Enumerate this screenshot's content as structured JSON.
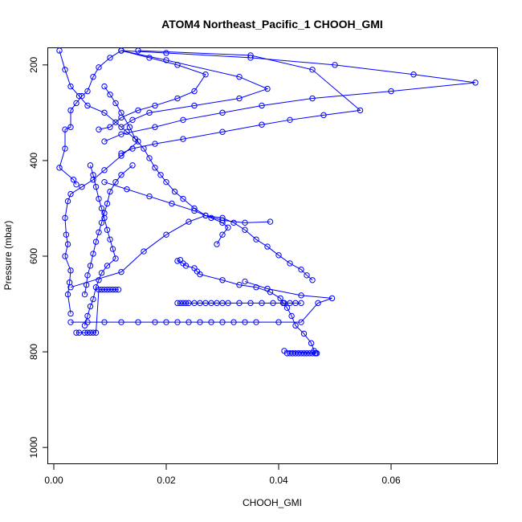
{
  "chart_data": {
    "type": "line",
    "title": "ATOM4 Northeast_Pacific_1 CHOOH_GMI",
    "xlabel": "CHOOH_GMI",
    "ylabel": "Pressure (mbar)",
    "xlim": [
      -0.001,
      0.079
    ],
    "ylim": [
      1035,
      165
    ],
    "y_reversed": true,
    "x_ticks": [
      0.0,
      0.02,
      0.04,
      0.06
    ],
    "x_tick_labels": [
      "0.00",
      "0.02",
      "0.04",
      "0.06"
    ],
    "y_ticks": [
      200,
      400,
      600,
      800,
      1000
    ],
    "y_tick_labels": [
      "200",
      "400",
      "600",
      "800",
      "1000"
    ],
    "grid": false,
    "marker": "open-circle",
    "color": "#0000ff",
    "series": [
      {
        "x": [
          0.0466,
          0.0463,
          0.0458,
          0.0445,
          0.043,
          0.0423,
          0.0415,
          0.0408,
          0.0403,
          0.0385,
          0.036,
          0.033,
          0.03,
          0.026,
          0.0255,
          0.025,
          0.0235,
          0.023,
          0.022,
          0.0225
        ],
        "y": [
          803,
          798,
          782,
          762,
          745,
          725,
          708,
          698,
          688,
          675,
          665,
          660,
          650,
          638,
          632,
          625,
          620,
          615,
          610,
          608
        ]
      },
      {
        "x": [
          0.0415,
          0.042,
          0.0425,
          0.043,
          0.0435,
          0.044,
          0.0445,
          0.045,
          0.0455,
          0.046,
          0.0465,
          0.0468,
          0.041
        ],
        "y": [
          803,
          803,
          803,
          803,
          803,
          803,
          803,
          803,
          803,
          803,
          803,
          803,
          798
        ]
      },
      {
        "x": [
          0.0225,
          0.022,
          0.023,
          0.0235,
          0.024,
          0.025,
          0.026,
          0.027,
          0.028,
          0.029,
          0.03,
          0.031,
          0.033,
          0.035,
          0.037,
          0.039,
          0.041,
          0.042,
          0.043,
          0.044
        ],
        "y": [
          698,
          698,
          698,
          698,
          698,
          698,
          698,
          698,
          698,
          698,
          698,
          698,
          698,
          698,
          698,
          698,
          698,
          698,
          698,
          698
        ]
      },
      {
        "x": [
          0.003,
          0.006,
          0.009,
          0.012,
          0.015,
          0.018,
          0.02,
          0.022,
          0.024,
          0.026,
          0.028,
          0.03,
          0.032,
          0.034,
          0.036,
          0.04,
          0.044,
          0.047,
          0.0495,
          0.044,
          0.038,
          0.034
        ],
        "y": [
          738,
          738,
          738,
          738,
          738,
          738,
          738,
          738,
          738,
          738,
          738,
          738,
          738,
          738,
          738,
          738,
          738,
          698,
          688,
          682,
          668,
          653
        ]
      },
      {
        "x": [
          0.003,
          0.012,
          0.016,
          0.02,
          0.024,
          0.027,
          0.03,
          0.032,
          0.034,
          0.036,
          0.038,
          0.04,
          0.042,
          0.044,
          0.045,
          0.046
        ],
        "y": [
          665,
          633,
          590,
          555,
          528,
          515,
          520,
          530,
          545,
          565,
          580,
          598,
          615,
          628,
          640,
          650
        ]
      },
      {
        "x": [
          0.004,
          0.0045,
          0.0055,
          0.006,
          0.0065,
          0.007,
          0.0075,
          0.008,
          0.0085,
          0.009,
          0.0095,
          0.01,
          0.0105,
          0.011,
          0.0115
        ],
        "y": [
          760,
          760,
          760,
          760,
          760,
          760,
          760,
          670,
          670,
          670,
          670,
          670,
          670,
          670,
          670
        ]
      },
      {
        "x": [
          0.001,
          0.002,
          0.003,
          0.0045,
          0.006,
          0.009,
          0.011,
          0.013,
          0.015,
          0.012,
          0.009,
          0.007,
          0.005,
          0.003,
          0.0025,
          0.002,
          0.0022,
          0.0025,
          0.002,
          0.003,
          0.0028,
          0.0025,
          0.003
        ],
        "y": [
          170,
          210,
          245,
          265,
          285,
          300,
          320,
          340,
          360,
          390,
          420,
          440,
          455,
          470,
          485,
          520,
          555,
          575,
          600,
          630,
          655,
          680,
          720
        ]
      },
      {
        "x": [
          0.012,
          0.01,
          0.008,
          0.007,
          0.006,
          0.005,
          0.004,
          0.003,
          0.003,
          0.002,
          0.002,
          0.001,
          0.0035,
          0.004
        ],
        "y": [
          170,
          185,
          205,
          225,
          255,
          265,
          280,
          295,
          330,
          335,
          375,
          415,
          440,
          450
        ]
      },
      {
        "x": [
          0.012,
          0.017,
          0.022,
          0.027,
          0.025,
          0.022,
          0.018,
          0.015,
          0.012,
          0.01,
          0.008
        ],
        "y": [
          170,
          185,
          200,
          220,
          255,
          270,
          285,
          295,
          310,
          330,
          335
        ]
      },
      {
        "x": [
          0.009,
          0.01,
          0.011,
          0.012,
          0.0135,
          0.0145,
          0.016,
          0.017,
          0.018,
          0.019,
          0.02,
          0.0215,
          0.023,
          0.025,
          0.027,
          0.03,
          0.034,
          0.0385
        ],
        "y": [
          245,
          262,
          280,
          300,
          330,
          355,
          375,
          395,
          415,
          430,
          445,
          465,
          480,
          500,
          515,
          525,
          530,
          528
        ]
      },
      {
        "x": [
          0.012,
          0.02,
          0.033,
          0.038,
          0.033,
          0.025,
          0.017,
          0.014,
          0.012
        ],
        "y": [
          170,
          190,
          225,
          250,
          270,
          285,
          300,
          315,
          330
        ]
      },
      {
        "x": [
          0.015,
          0.035,
          0.046,
          0.0545,
          0.048,
          0.042,
          0.037,
          0.03,
          0.023,
          0.018,
          0.014,
          0.012
        ],
        "y": [
          170,
          180,
          210,
          295,
          305,
          315,
          325,
          340,
          355,
          365,
          375,
          385
        ]
      },
      {
        "x": [
          0.012,
          0.02,
          0.035,
          0.05,
          0.064,
          0.075,
          0.06,
          0.046,
          0.037,
          0.03,
          0.023,
          0.018,
          0.012,
          0.009
        ],
        "y": [
          170,
          175,
          185,
          200,
          220,
          237,
          255,
          270,
          285,
          300,
          315,
          330,
          345,
          360
        ]
      },
      {
        "x": [
          0.0065,
          0.007,
          0.0075,
          0.008,
          0.0085,
          0.009,
          0.0095,
          0.01,
          0.0105,
          0.011,
          0.0095,
          0.0085,
          0.008,
          0.0075,
          0.007,
          0.0065,
          0.006,
          0.0055
        ],
        "y": [
          410,
          430,
          455,
          480,
          500,
          520,
          545,
          565,
          585,
          605,
          620,
          635,
          650,
          665,
          690,
          705,
          725,
          745
        ]
      },
      {
        "x": [
          0.014,
          0.012,
          0.011,
          0.01,
          0.0095,
          0.009,
          0.0085,
          0.008,
          0.0075,
          0.007,
          0.0065,
          0.006,
          0.0058,
          0.0055
        ],
        "y": [
          410,
          430,
          445,
          465,
          490,
          510,
          530,
          550,
          570,
          595,
          620,
          640,
          660,
          680
        ]
      },
      {
        "x": [
          0.009,
          0.013,
          0.017,
          0.021,
          0.025,
          0.028,
          0.03,
          0.031,
          0.03,
          0.029
        ],
        "y": [
          445,
          460,
          475,
          490,
          505,
          520,
          530,
          540,
          555,
          575
        ]
      }
    ]
  }
}
